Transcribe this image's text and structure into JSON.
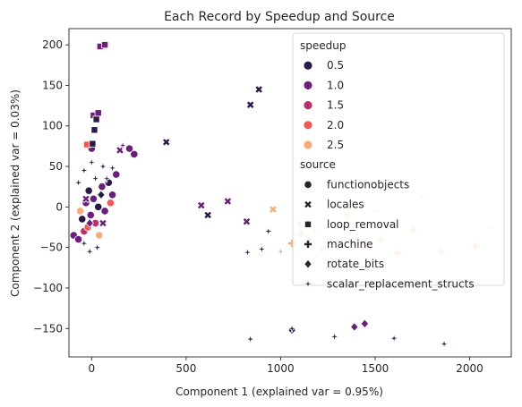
{
  "chart_data": {
    "type": "scatter",
    "title": "Each Record by Speedup and Source",
    "xlabel": "Component 1 (explained var = 0.95%)",
    "ylabel": "Component 2 (explained var = 0.03%)",
    "xlim": [
      -120,
      2220
    ],
    "ylim": [
      -185,
      220
    ],
    "xticks": [
      0,
      500,
      1000,
      1500,
      2000
    ],
    "yticks": [
      -150,
      -100,
      -50,
      0,
      50,
      100,
      150,
      200
    ],
    "grid": false,
    "legend": {
      "placement": "top-right",
      "hue_title": "speedup",
      "hue_entries": [
        {
          "label": "0.5",
          "color": "#2b1a48"
        },
        {
          "label": "1.0",
          "color": "#6a1f78"
        },
        {
          "label": "1.5",
          "color": "#b8316f"
        },
        {
          "label": "2.0",
          "color": "#ee5a57"
        },
        {
          "label": "2.5",
          "color": "#f6ad79"
        }
      ],
      "style_title": "source",
      "style_entries": [
        {
          "label": "functionobjects",
          "marker": "circle"
        },
        {
          "label": "locales",
          "marker": "x"
        },
        {
          "label": "loop_removal",
          "marker": "square"
        },
        {
          "label": "machine",
          "marker": "plus"
        },
        {
          "label": "rotate_bits",
          "marker": "diamond"
        },
        {
          "label": "scalar_replacement_structs",
          "marker": "star"
        }
      ]
    },
    "series": [
      {
        "name": "functionobjects",
        "marker": "circle",
        "points": [
          {
            "x": -95,
            "y": -35,
            "s": 1.0
          },
          {
            "x": -70,
            "y": -40,
            "s": 1.0
          },
          {
            "x": -50,
            "y": -15,
            "s": 0.5
          },
          {
            "x": -40,
            "y": -30,
            "s": 1.5
          },
          {
            "x": -30,
            "y": 5,
            "s": 1.0
          },
          {
            "x": -20,
            "y": -25,
            "s": 2.0
          },
          {
            "x": -15,
            "y": 20,
            "s": 0.5
          },
          {
            "x": -5,
            "y": -10,
            "s": 1.0
          },
          {
            "x": 10,
            "y": 10,
            "s": 1.0
          },
          {
            "x": 20,
            "y": -20,
            "s": 1.5
          },
          {
            "x": 35,
            "y": 0,
            "s": 0.5
          },
          {
            "x": 55,
            "y": 25,
            "s": 1.0
          },
          {
            "x": 70,
            "y": -5,
            "s": 1.0
          },
          {
            "x": 90,
            "y": 30,
            "s": 0.5
          },
          {
            "x": 110,
            "y": 15,
            "s": 1.0
          },
          {
            "x": 130,
            "y": 40,
            "s": 1.0
          },
          {
            "x": 0,
            "y": 72,
            "s": 1.0
          },
          {
            "x": 200,
            "y": 72,
            "s": 1.0
          },
          {
            "x": 225,
            "y": 65,
            "s": 1.0
          },
          {
            "x": -60,
            "y": -5,
            "s": 2.5
          },
          {
            "x": 40,
            "y": -35,
            "s": 2.5
          },
          {
            "x": 100,
            "y": 5,
            "s": 2.0
          }
        ]
      },
      {
        "name": "locales",
        "marker": "x",
        "points": [
          {
            "x": 580,
            "y": 2,
            "s": 1.0
          },
          {
            "x": 615,
            "y": -10,
            "s": 0.5
          },
          {
            "x": 720,
            "y": 7,
            "s": 1.0
          },
          {
            "x": 820,
            "y": -18,
            "s": 1.0
          },
          {
            "x": 840,
            "y": 126,
            "s": 0.5
          },
          {
            "x": 885,
            "y": 145,
            "s": 0.5
          },
          {
            "x": 395,
            "y": 80,
            "s": 0.5
          },
          {
            "x": 960,
            "y": -3,
            "s": 2.5
          },
          {
            "x": 1350,
            "y": -10,
            "s": 2.5
          },
          {
            "x": -30,
            "y": 10,
            "s": 1.0
          },
          {
            "x": 60,
            "y": -20,
            "s": 1.0
          },
          {
            "x": 150,
            "y": 70,
            "s": 1.0
          }
        ]
      },
      {
        "name": "loop_removal",
        "marker": "square",
        "points": [
          {
            "x": 45,
            "y": 198,
            "s": 1.0
          },
          {
            "x": 70,
            "y": 200,
            "s": 1.0
          },
          {
            "x": 10,
            "y": 113,
            "s": 1.0
          },
          {
            "x": 35,
            "y": 116,
            "s": 1.0
          },
          {
            "x": 15,
            "y": 95,
            "s": 0.5
          },
          {
            "x": -25,
            "y": 77,
            "s": 2.0
          },
          {
            "x": 5,
            "y": 78,
            "s": 0.5
          },
          {
            "x": 25,
            "y": 108,
            "s": 0.5
          }
        ]
      },
      {
        "name": "machine",
        "marker": "plus",
        "points": [
          {
            "x": 1450,
            "y": -45,
            "s": 2.5
          },
          {
            "x": 1530,
            "y": -40,
            "s": 2.5
          },
          {
            "x": 1620,
            "y": -57,
            "s": 2.5
          },
          {
            "x": 1700,
            "y": -28,
            "s": 2.5
          },
          {
            "x": 1850,
            "y": -55,
            "s": 2.5
          },
          {
            "x": 2030,
            "y": -48,
            "s": 2.5
          },
          {
            "x": 1060,
            "y": -45,
            "s": 2.5
          },
          {
            "x": 1110,
            "y": -33,
            "s": 2.5
          },
          {
            "x": 1220,
            "y": -52,
            "s": 2.5
          }
        ]
      },
      {
        "name": "rotate_bits",
        "marker": "diamond",
        "points": [
          {
            "x": 1390,
            "y": -148,
            "s": 1.0
          },
          {
            "x": 1445,
            "y": -144,
            "s": 1.0
          },
          {
            "x": 1060,
            "y": -152,
            "s": 0.5
          },
          {
            "x": -10,
            "y": -20,
            "s": 1.0
          },
          {
            "x": 50,
            "y": 15,
            "s": 0.5
          }
        ]
      },
      {
        "name": "scalar_replacement_structs",
        "marker": "star",
        "points": [
          {
            "x": 840,
            "y": -163,
            "s": 0.5
          },
          {
            "x": 1060,
            "y": -150,
            "s": 0.5
          },
          {
            "x": 1285,
            "y": -160,
            "s": 0.5
          },
          {
            "x": 1600,
            "y": -162,
            "s": 0.5
          },
          {
            "x": 1865,
            "y": -169,
            "s": 0.5
          },
          {
            "x": 900,
            "y": -52,
            "s": 0.5
          },
          {
            "x": 825,
            "y": -56,
            "s": 0.5
          },
          {
            "x": 935,
            "y": -30,
            "s": 0.5
          },
          {
            "x": 1150,
            "y": -40,
            "s": 1.0
          },
          {
            "x": 1100,
            "y": -20,
            "s": 1.5
          },
          {
            "x": 1180,
            "y": -30,
            "s": 2.5
          },
          {
            "x": 1310,
            "y": -45,
            "s": 2.5
          },
          {
            "x": 1500,
            "y": -5,
            "s": 2.5
          },
          {
            "x": 1745,
            "y": 12,
            "s": 2.5
          },
          {
            "x": 2105,
            "y": -25,
            "s": 2.5
          },
          {
            "x": 1000,
            "y": -55,
            "s": 2.5
          },
          {
            "x": 165,
            "y": 76,
            "s": 1.0
          },
          {
            "x": -40,
            "y": 45,
            "s": 0.5
          },
          {
            "x": 0,
            "y": 55,
            "s": 0.5
          },
          {
            "x": 60,
            "y": 50,
            "s": 0.5
          },
          {
            "x": 110,
            "y": 48,
            "s": 0.5
          },
          {
            "x": -70,
            "y": 30,
            "s": 0.5
          },
          {
            "x": 20,
            "y": 35,
            "s": 0.5
          },
          {
            "x": 80,
            "y": 35,
            "s": 1.0
          },
          {
            "x": -40,
            "y": -45,
            "s": 0.5
          },
          {
            "x": 30,
            "y": -50,
            "s": 0.5
          },
          {
            "x": -10,
            "y": -55,
            "s": 0.5
          }
        ]
      }
    ]
  }
}
